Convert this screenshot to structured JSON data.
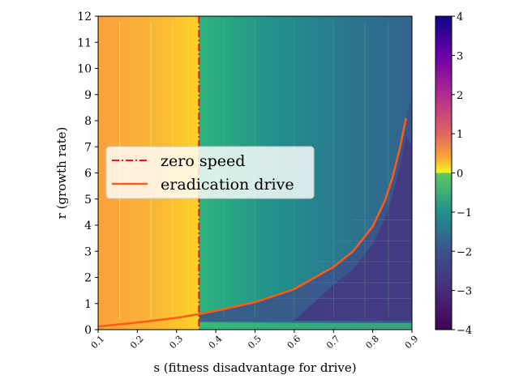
{
  "chart_data": {
    "type": "heatmap",
    "xlabel": "s (fitness disadvantage for drive)",
    "ylabel": "r (growth rate)",
    "xlim": [
      0.1,
      0.9
    ],
    "ylim": [
      0,
      12
    ],
    "x_ticks": [
      "0.1",
      "0.2",
      "0.3",
      "0.4",
      "0.5",
      "0.6",
      "0.7",
      "0.8",
      "0.9"
    ],
    "y_ticks": [
      "0",
      "1",
      "2",
      "3",
      "4",
      "5",
      "6",
      "7",
      "8",
      "9",
      "10",
      "11",
      "12"
    ],
    "colorbar": {
      "range": [
        -4,
        4
      ],
      "ticks": [
        "4",
        "3",
        "2",
        "1",
        "0",
        "−1",
        "−2",
        "−3",
        "−4"
      ],
      "positive_colormap": "plasma",
      "negative_colormap": "viridis"
    },
    "legend": {
      "placement": "center-left",
      "entries": [
        {
          "label": "zero speed",
          "color": "#e8181c",
          "style": "dash-dot"
        },
        {
          "label": "eradication drive",
          "color": "#ff5b14",
          "style": "solid"
        }
      ]
    },
    "zero_speed_s": 0.357,
    "series": [
      {
        "name": "eradication drive",
        "x": [
          0.1,
          0.2,
          0.3,
          0.36,
          0.4,
          0.5,
          0.6,
          0.7,
          0.75,
          0.8,
          0.83,
          0.85,
          0.87,
          0.885
        ],
        "y": [
          0.12,
          0.27,
          0.45,
          0.6,
          0.72,
          1.05,
          1.55,
          2.4,
          3.0,
          3.95,
          4.9,
          5.8,
          7.0,
          8.1
        ]
      }
    ],
    "vertical_contours_s": [
      0.155,
      0.235,
      0.29,
      0.33
    ],
    "colors": {
      "region_left": "#f9a73d",
      "region_right": "#20a486",
      "region_bottom_right": "#3e4a89",
      "zero_speed_line": "#e8181c",
      "eradication_line": "#ff5b14"
    }
  }
}
